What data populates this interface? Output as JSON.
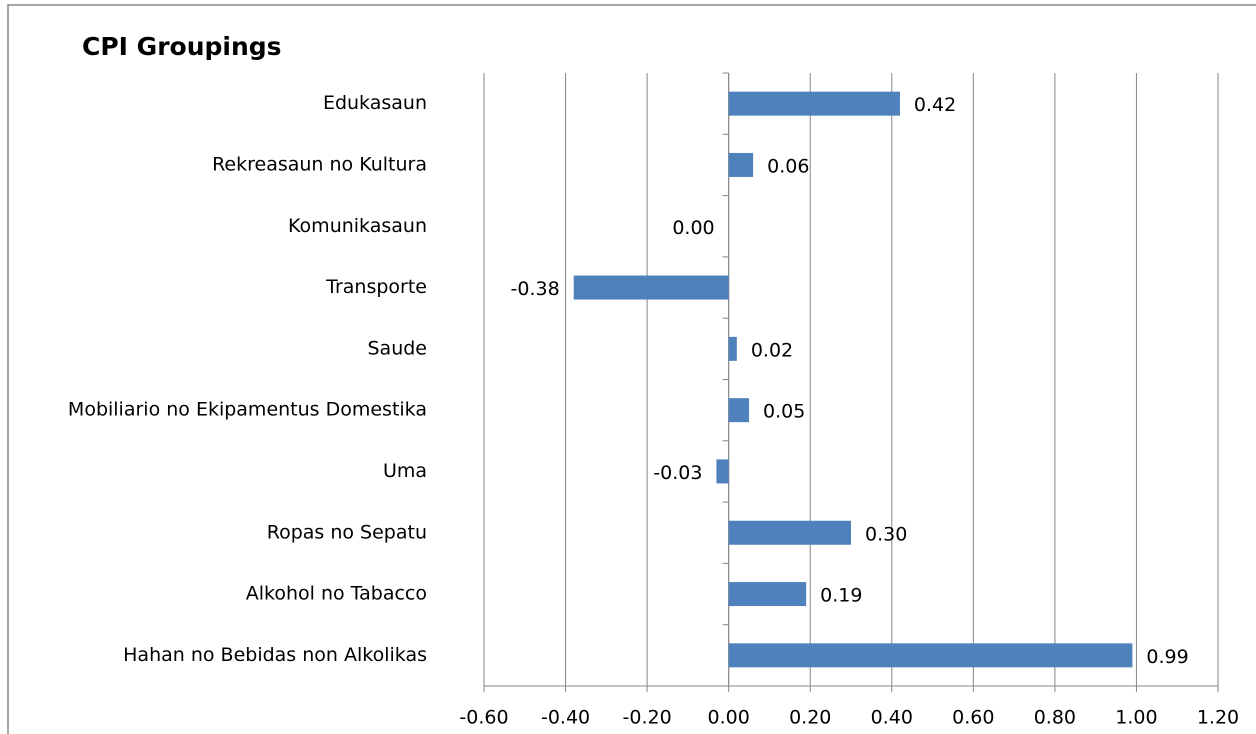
{
  "chart_data": {
    "type": "barh",
    "title": "CPI Groupings",
    "categories": [
      "Edukasaun",
      "Rekreasaun no Kultura",
      "Komunikasaun",
      "Transporte",
      "Saude",
      "Mobiliario no Ekipamentus Domestika",
      "Uma",
      "Ropas no Sepatu",
      "Alkohol no Tabacco",
      "Hahan no Bebidas non Alkolikas"
    ],
    "values": [
      0.42,
      0.06,
      0,
      -0.38,
      0.02,
      0.05,
      -0.03,
      0.3,
      0.19,
      0.99
    ],
    "value_labels": [
      "0.42",
      "0.06",
      "0.00",
      "-0.38",
      "0.02",
      "0.05",
      "-0.03",
      "0.30",
      "0.19",
      "0.99"
    ],
    "color": "#4f81bd",
    "xlim": [
      -0.6,
      1.2
    ],
    "xticks": [
      {
        "value": -0.6,
        "label": "-0.60"
      },
      {
        "value": -0.4,
        "label": "-0.40"
      },
      {
        "value": -0.2,
        "label": "-0.20"
      },
      {
        "value": 0,
        "label": "0.00"
      },
      {
        "value": 0.2,
        "label": "0.20"
      },
      {
        "value": 0.4,
        "label": "0.40"
      },
      {
        "value": 0.6,
        "label": "0.60"
      },
      {
        "value": 0.8,
        "label": "0.80"
      },
      {
        "value": 1.0,
        "label": "1.00"
      },
      {
        "value": 1.2,
        "label": "1.20"
      }
    ],
    "grid": true
  }
}
